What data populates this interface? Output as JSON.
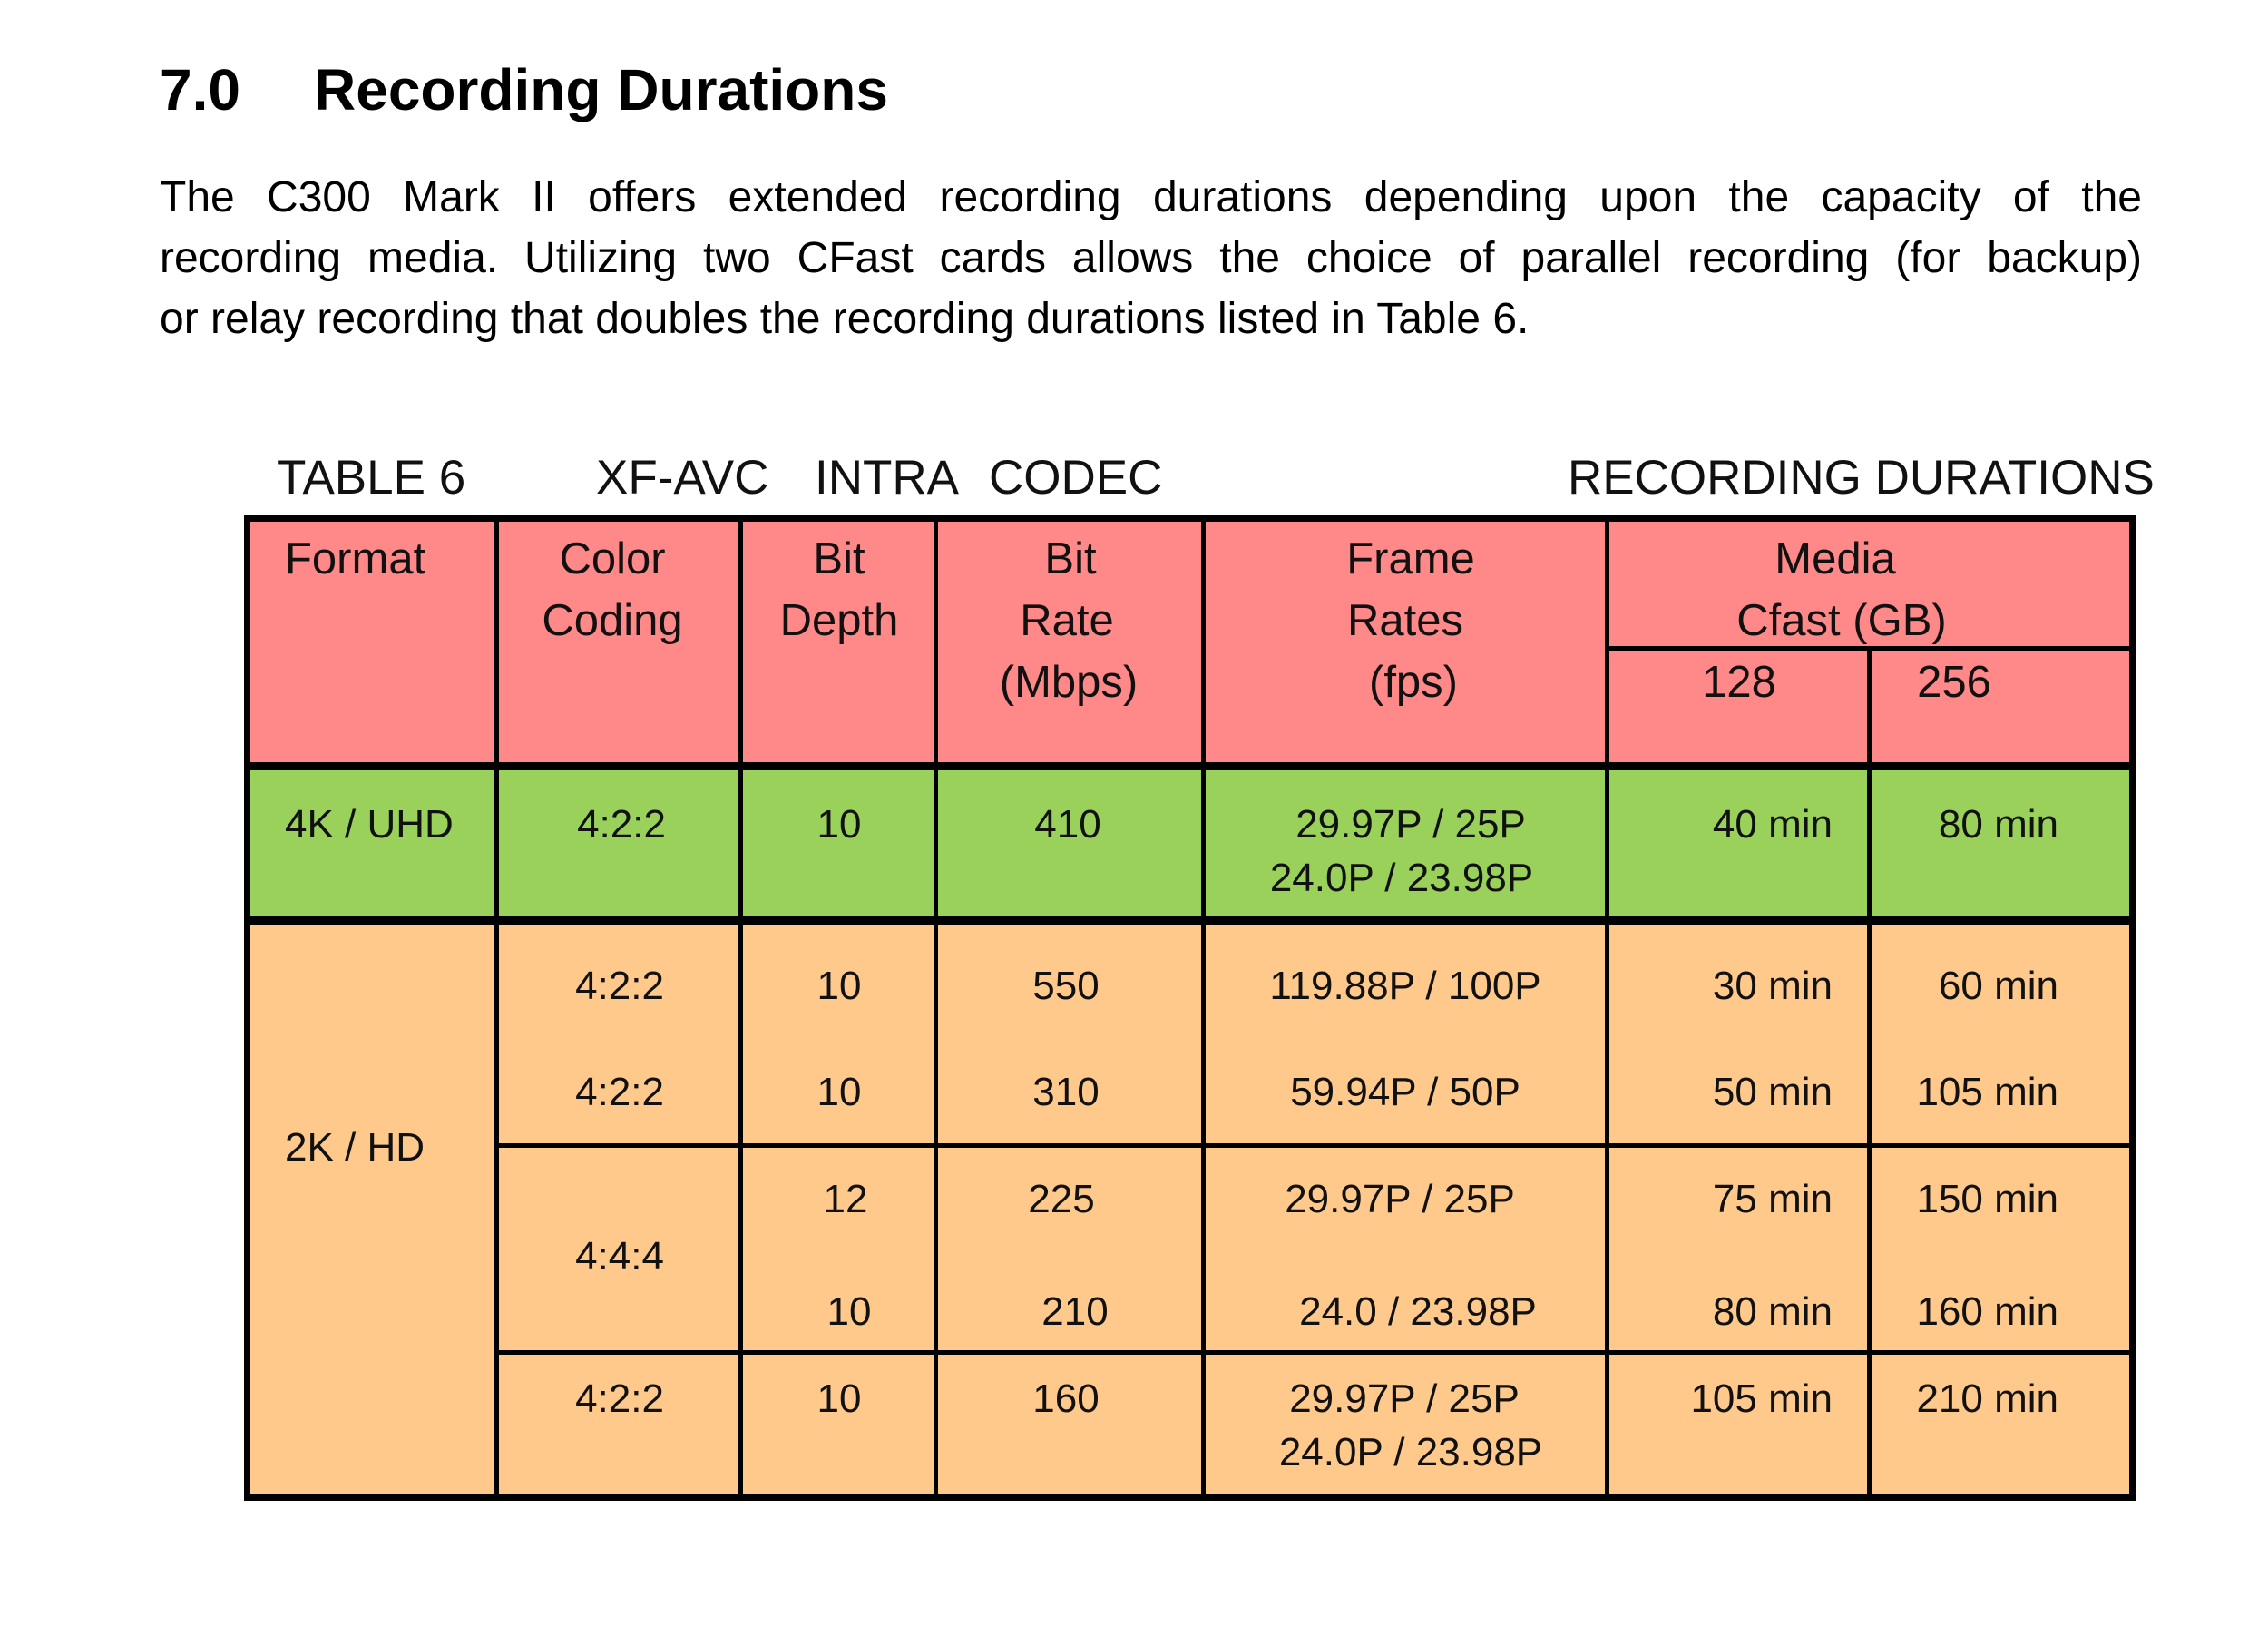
{
  "section": {
    "number": "7.0",
    "title": "Recording Durations"
  },
  "paragraph": [
    "The C300 Mark II offers extended recording durations depending upon the capacity of the",
    "recording media.  Utilizing two CFast cards allows the choice of parallel recording (for backup)",
    "or relay recording that doubles the recording durations listed in Table 6."
  ],
  "caption": {
    "table": "TABLE 6",
    "codec1": "XF-AVC",
    "codec2": "INTRA",
    "codec3": "CODEC",
    "right": "RECORDING DURATIONS"
  },
  "colors": {
    "header": "#FF8888",
    "uhd": "#99D15B",
    "hd": "#FFC98B",
    "border": "#000000"
  },
  "headers": {
    "format": "Format",
    "color": [
      "Color",
      "Coding"
    ],
    "depth": [
      "Bit",
      "Depth"
    ],
    "rate": [
      "Bit",
      "Rate",
      "(Mbps)"
    ],
    "fps": [
      "Frame",
      "Rates",
      "(fps)"
    ],
    "media": [
      "Media",
      "Cfast (GB)"
    ],
    "sizes": [
      "128",
      "256"
    ]
  },
  "uhd": {
    "format": "4K / UHD",
    "color": "4:2:2",
    "depth": "10",
    "rate": "410",
    "fps": [
      "29.97P / 25P",
      "24.0P / 23.98P"
    ],
    "d128": "40 min",
    "d256": "80 min"
  },
  "hd": {
    "format": "2K / HD",
    "rows": [
      {
        "color": "4:2:2",
        "depth": "10",
        "rate": "550",
        "fps": "119.88P / 100P",
        "d128": "30 min",
        "d256": "60 min"
      },
      {
        "color": "4:2:2",
        "depth": "10",
        "rate": "310",
        "fps": "59.94P / 50P",
        "d128": "50 min",
        "d256": "105 min"
      },
      {
        "color": "4:4:4",
        "depth": "12",
        "rate": "225",
        "fps": "29.97P / 25P",
        "d128": "75 min",
        "d256": "150 min"
      },
      {
        "depth": "10",
        "rate": "210",
        "fps": "24.0 / 23.98P",
        "d128": "80 min",
        "d256": "160 min"
      },
      {
        "color": "4:2:2",
        "depth": "10",
        "rate": "160",
        "fps": [
          "29.97P / 25P",
          "24.0P / 23.98P"
        ],
        "d128": "105 min",
        "d256": "210 min"
      }
    ]
  }
}
